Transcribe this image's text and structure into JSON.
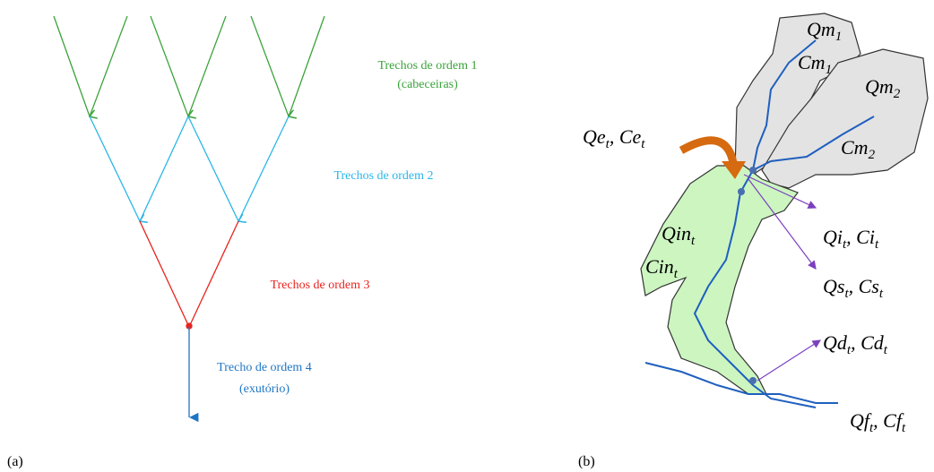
{
  "panel_a": {
    "caption": "(a)",
    "order1": {
      "line1": "Trechos de ordem 1",
      "line2": "(cabeceiras)"
    },
    "order2": "Trechos de ordem 2",
    "order3": "Trechos de ordem 3",
    "order4": {
      "line1": "Trecho de ordem 4",
      "line2": "(exutório)"
    }
  },
  "panel_b": {
    "caption": "(b)",
    "labels": [
      {
        "terms": [
          {
            "base": "Qm",
            "sub": "1"
          }
        ]
      },
      {
        "terms": [
          {
            "base": "Cm",
            "sub": "1"
          }
        ]
      },
      {
        "terms": [
          {
            "base": "Qm",
            "sub": "2"
          }
        ]
      },
      {
        "terms": [
          {
            "base": "Cm",
            "sub": "2"
          }
        ]
      },
      {
        "terms": [
          {
            "base": "Qe",
            "sub": "t",
            "after": ","
          },
          {
            "base": "Ce",
            "sub": "t"
          }
        ]
      },
      {
        "terms": [
          {
            "base": "Qin",
            "sub": "t"
          }
        ]
      },
      {
        "terms": [
          {
            "base": "Cin",
            "sub": "t"
          }
        ]
      },
      {
        "terms": [
          {
            "base": "Qi",
            "sub": "t",
            "after": ","
          },
          {
            "base": "Ci",
            "sub": "t"
          }
        ]
      },
      {
        "terms": [
          {
            "base": "Qs",
            "sub": "t",
            "after": ","
          },
          {
            "base": "Cs",
            "sub": "t"
          }
        ]
      },
      {
        "terms": [
          {
            "base": "Qd",
            "sub": "t",
            "after": ","
          },
          {
            "base": "Cd",
            "sub": "t"
          }
        ]
      },
      {
        "terms": [
          {
            "base": "Qf",
            "sub": "t",
            "after": ","
          },
          {
            "base": "Cf",
            "sub": "t"
          }
        ]
      }
    ]
  }
}
